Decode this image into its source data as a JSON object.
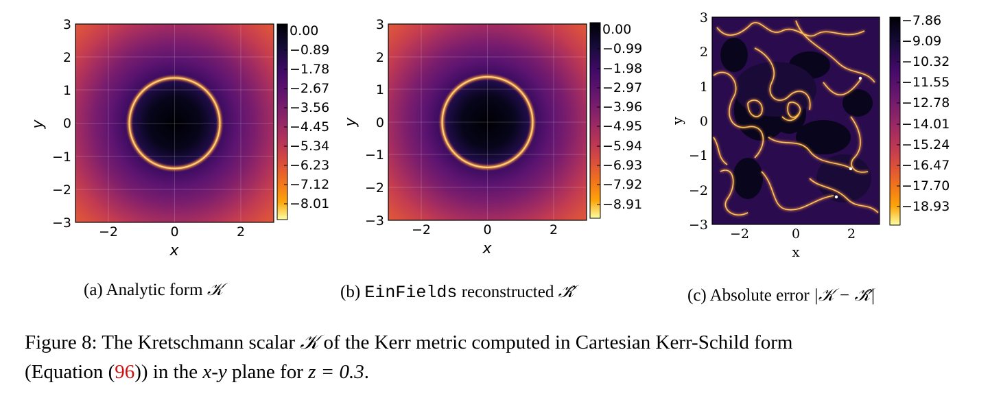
{
  "chart_data": [
    {
      "type": "heatmap",
      "name": "analytic",
      "title": "",
      "xlabel": "x",
      "ylabel": "y",
      "xlim": [
        -3,
        3
      ],
      "ylim": [
        -3,
        3
      ],
      "xticks": [
        "−2",
        "0",
        "2"
      ],
      "yticks": [
        "3",
        "2",
        "1",
        "0",
        "−1",
        "−2",
        "−3"
      ],
      "colorbar_ticks": [
        "0.00",
        "−0.89",
        "−1.78",
        "−2.67",
        "−3.56",
        "−4.45",
        "−5.34",
        "−6.23",
        "−7.12",
        "−8.01"
      ],
      "colormap": "inferno_r",
      "feature": "bright ring of radius ~1.35 around dark disk at origin"
    },
    {
      "type": "heatmap",
      "name": "reconstructed",
      "title": "",
      "xlabel": "x",
      "ylabel": "y",
      "xlim": [
        -3,
        3
      ],
      "ylim": [
        -3,
        3
      ],
      "xticks": [
        "−2",
        "0",
        "2"
      ],
      "yticks": [
        "3",
        "2",
        "1",
        "0",
        "−1",
        "−2",
        "−3"
      ],
      "colorbar_ticks": [
        "0.00",
        "−0.99",
        "−1.98",
        "−2.97",
        "−3.96",
        "−4.95",
        "−5.94",
        "−6.93",
        "−7.92",
        "−8.91"
      ],
      "colormap": "inferno_r",
      "feature": "bright ring of radius ~1.35 around dark disk at origin"
    },
    {
      "type": "heatmap",
      "name": "absolute-error",
      "title": "",
      "xlabel": "x",
      "ylabel": "y",
      "xlim": [
        -3,
        3
      ],
      "ylim": [
        -3,
        3
      ],
      "xticks": [
        "−2",
        "0",
        "2"
      ],
      "yticks": [
        "3",
        "2",
        "1",
        "0",
        "−1",
        "−2",
        "−3"
      ],
      "colorbar_ticks": [
        "−7.86",
        "−9.09",
        "−10.32",
        "−11.55",
        "−12.78",
        "−14.01",
        "−15.24",
        "−16.47",
        "−17.70",
        "−18.93"
      ],
      "colormap": "inferno_r",
      "feature": "irregular network of thin bright error contours"
    }
  ],
  "subcaptions": {
    "a": {
      "prefix": "(a) Analytic form ",
      "symbol": "𝒦"
    },
    "b": {
      "prefix": "(b) ",
      "mono": "EinFields",
      "suffix": " reconstructed ",
      "symbol": "𝒦̂"
    },
    "c": {
      "prefix": "(c) Absolute error ",
      "expr": "|𝒦 − 𝒦̂|"
    }
  },
  "caption": {
    "label": "Figure 8:",
    "line1_a": " The Kretschmann scalar ",
    "symbol": "𝒦",
    "line1_b": " of the Kerr metric computed in Cartesian Kerr-Schild form",
    "line2_a": "(Equation (",
    "ref": "96",
    "line2_b": ")) in the ",
    "var_x": "x",
    "dash": "-",
    "var_y": "y",
    "line2_c": " plane for ",
    "eq": "z = 0.3",
    "line2_d": "."
  },
  "colors": {
    "background": "#ffffff",
    "reference": "#cc1111"
  }
}
